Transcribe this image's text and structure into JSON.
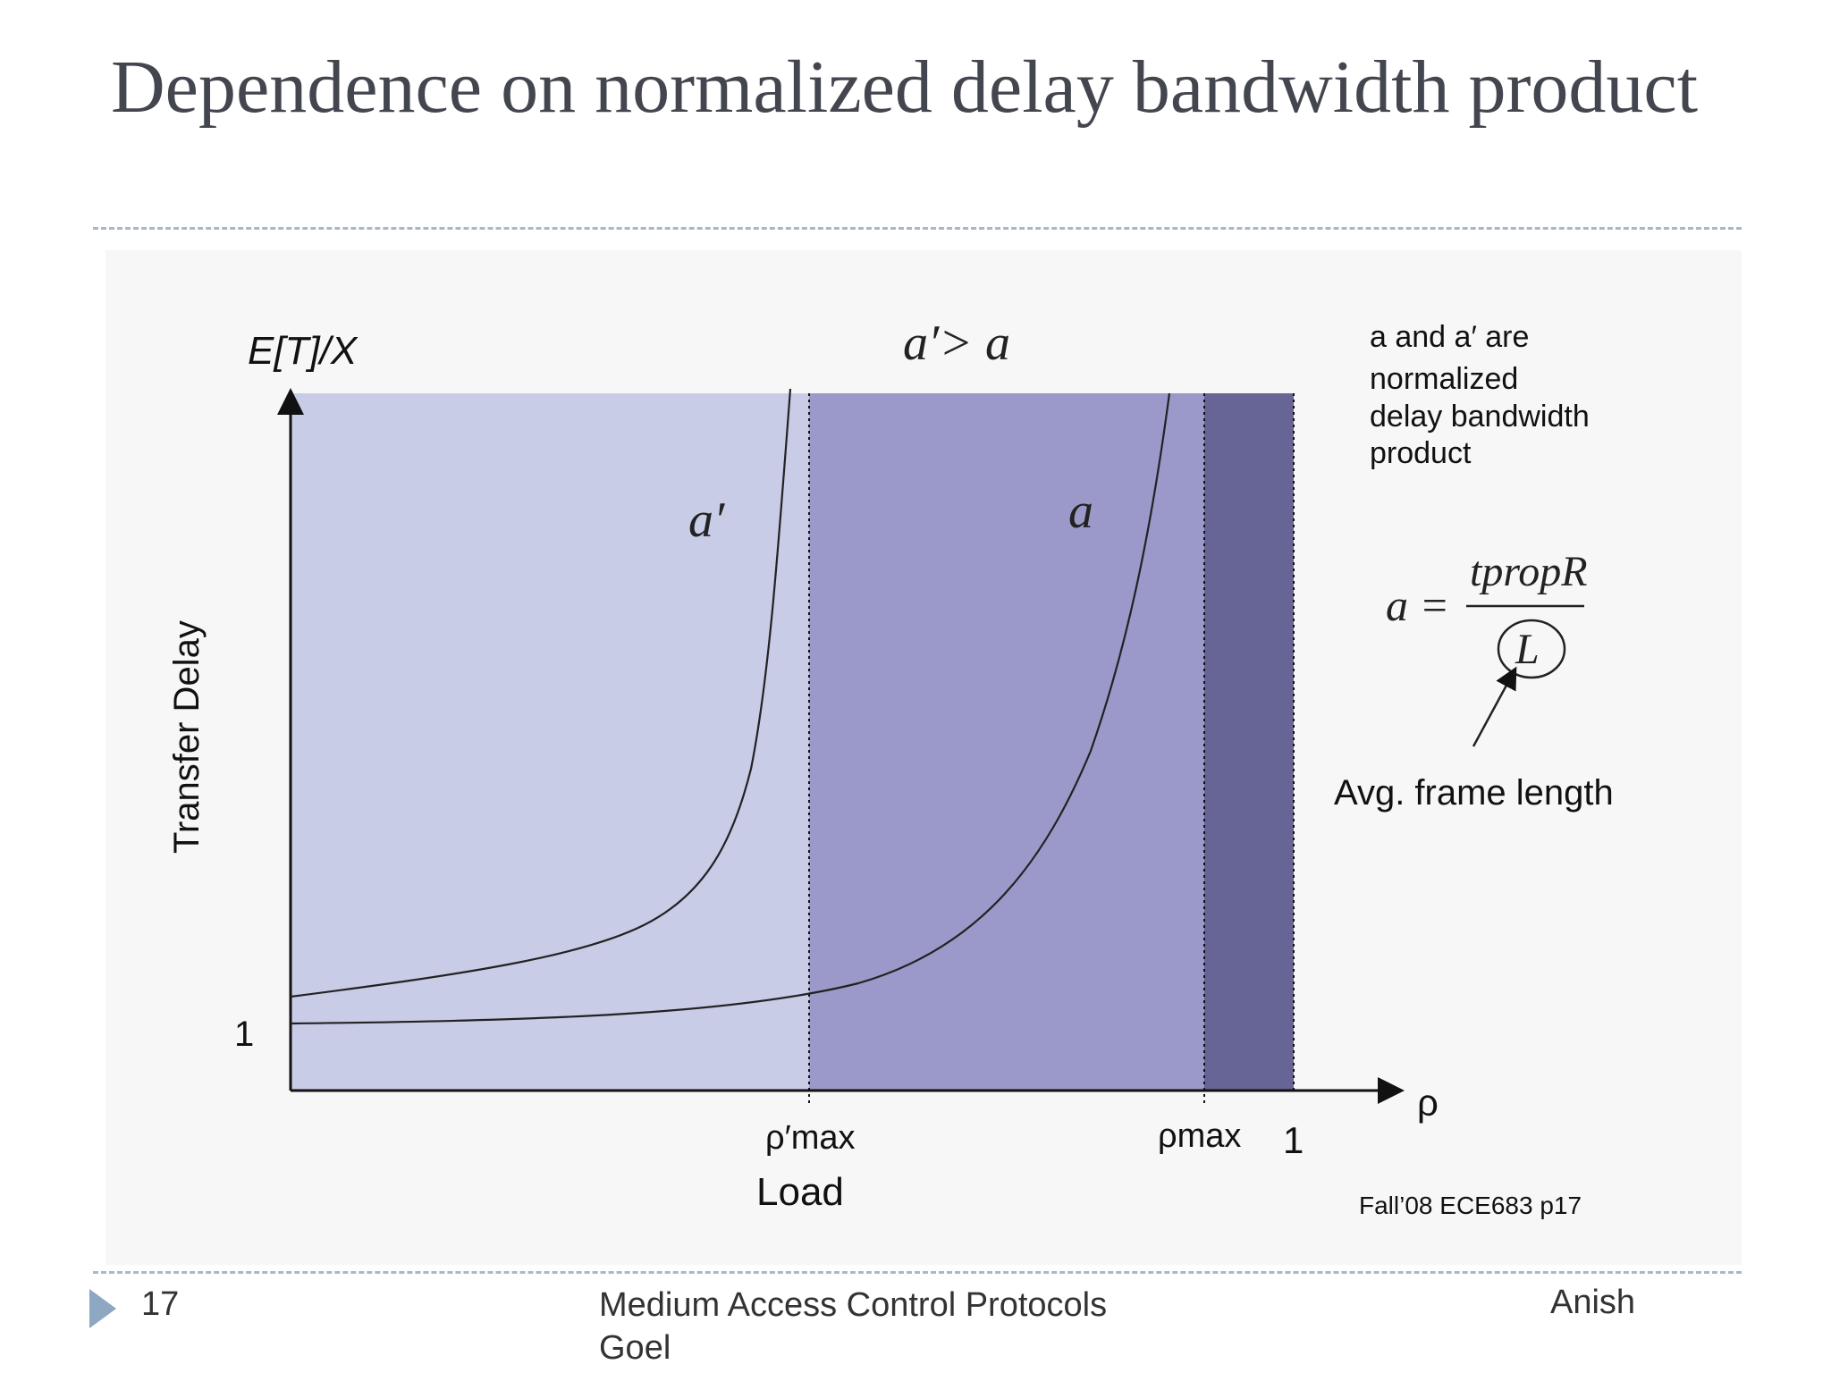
{
  "slide": {
    "title": "Dependence on normalized delay bandwidth product",
    "number": "17",
    "course": "Medium Access Control Protocols Goel",
    "author": "Anish"
  },
  "diagram": {
    "y_axis_top_label": "E[T]/X",
    "y_axis_label": "Transfer Delay",
    "y_tick": "1",
    "x_axis_end_label": "ρ",
    "x_axis_label": "Load",
    "x_tick_rho_prime": "ρ′max",
    "x_tick_rho": "ρmax",
    "x_tick_one": "1",
    "header_relation": "a′> a",
    "curve_a_prime_label": "a′",
    "curve_a_label": "a",
    "note_line1": "a and a′ are",
    "note_line2": "normalized",
    "note_line3": "delay bandwidth",
    "note_line4": "product",
    "formula_lhs": "a =",
    "formula_numerator": "tpropR",
    "formula_denominator": "L",
    "formula_callout": "Avg. frame length",
    "source": "Fall’08 ECE683 p17",
    "colors": {
      "region_light": "#c9cce7",
      "region_medium": "#9b99c9",
      "region_dark": "#676596",
      "title": "#44464f",
      "rule": "#a9b8c8"
    }
  }
}
